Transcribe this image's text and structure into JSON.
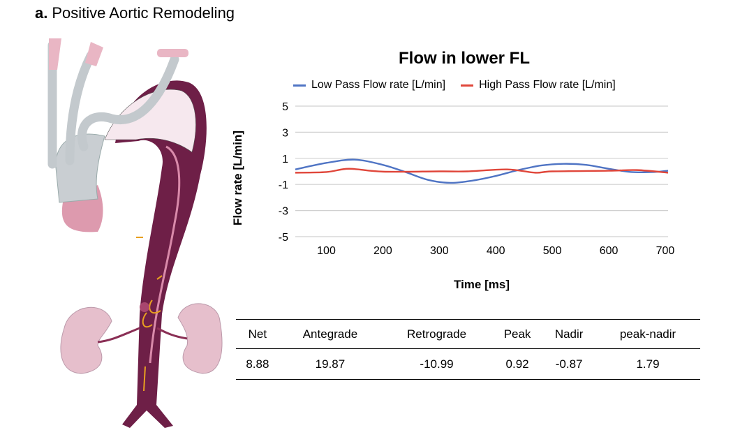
{
  "panel": {
    "letter": "a.",
    "title": "Positive Aortic Remodeling"
  },
  "chart_data": {
    "type": "line",
    "title": "Flow in lower FL",
    "xlabel": "Time [ms]",
    "ylabel": "Flow rate [L/min]",
    "xlim": [
      45,
      705
    ],
    "ylim": [
      -5,
      5
    ],
    "xticks": [
      100,
      200,
      300,
      400,
      500,
      600,
      700
    ],
    "yticks": [
      5,
      3,
      1,
      -1,
      -3,
      -5
    ],
    "grid": true,
    "legend_position": "top",
    "series": [
      {
        "name": "Low Pass Flow rate [L/min]",
        "color": "#4f74c4",
        "x": [
          45,
          100,
          150,
          200,
          240,
          280,
          320,
          360,
          400,
          440,
          480,
          520,
          560,
          600,
          640,
          680,
          705
        ],
        "y": [
          0.15,
          0.65,
          0.9,
          0.5,
          -0.05,
          -0.65,
          -0.88,
          -0.7,
          -0.35,
          0.1,
          0.45,
          0.58,
          0.5,
          0.2,
          -0.05,
          -0.05,
          0.05
        ]
      },
      {
        "name": "High Pass Flow rate [L/min]",
        "color": "#e0463a",
        "x": [
          45,
          100,
          140,
          200,
          300,
          350,
          420,
          470,
          500,
          600,
          650,
          705
        ],
        "y": [
          -0.1,
          -0.05,
          0.2,
          -0.02,
          0.0,
          0.0,
          0.15,
          -0.1,
          0.0,
          0.05,
          0.1,
          -0.1
        ]
      }
    ]
  },
  "table": {
    "headers": [
      "Net",
      "Antegrade",
      "Retrograde",
      "Peak",
      "Nadir",
      "peak-nadir"
    ],
    "values": [
      "8.88",
      "19.87",
      "-10.99",
      "0.92",
      "-0.87",
      "1.79"
    ]
  }
}
